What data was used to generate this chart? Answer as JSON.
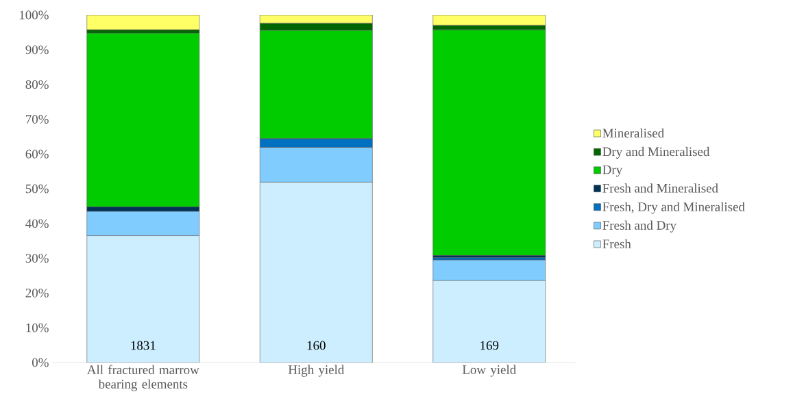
{
  "chart_data": {
    "type": "bar",
    "stacked": true,
    "categories": [
      "All fractured marrow bearing elements",
      "High yield",
      "Low yield"
    ],
    "series": [
      {
        "name": "Fresh",
        "color": "#cceeff",
        "values": [
          36.5,
          51.9,
          23.6
        ]
      },
      {
        "name": "Fresh and Dry",
        "color": "#80ccff",
        "values": [
          7.0,
          10.0,
          5.9
        ]
      },
      {
        "name": "Fresh, Dry and Mineralised",
        "color": "#0070c0",
        "values": [
          0,
          2.5,
          0.7
        ]
      },
      {
        "name": "Fresh and Mineralised",
        "color": "#003355",
        "values": [
          1.3,
          0,
          0.6
        ]
      },
      {
        "name": "Dry",
        "color": "#00cc00",
        "values": [
          50.0,
          31.2,
          64.9
        ]
      },
      {
        "name": "Dry and Mineralised",
        "color": "#006600",
        "values": [
          0.9,
          2.0,
          1.3
        ]
      },
      {
        "name": "Mineralised",
        "color": "#ffff66",
        "values": [
          4.3,
          2.4,
          3.0
        ]
      }
    ],
    "ylim": [
      0,
      100
    ],
    "yticks": [
      {
        "value": 0,
        "label": "0%"
      },
      {
        "value": 10,
        "label": "10%"
      },
      {
        "value": 20,
        "label": "20%"
      },
      {
        "value": 30,
        "label": "30%"
      },
      {
        "value": 40,
        "label": "40%"
      },
      {
        "value": 50,
        "label": "50%"
      },
      {
        "value": 60,
        "label": "60%"
      },
      {
        "value": 70,
        "label": "70%"
      },
      {
        "value": 80,
        "label": "80%"
      },
      {
        "value": 90,
        "label": "90%"
      },
      {
        "value": 100,
        "label": "100%"
      }
    ],
    "annotations": [
      "1831",
      "160",
      "169"
    ],
    "legend": "right",
    "grid": false
  }
}
